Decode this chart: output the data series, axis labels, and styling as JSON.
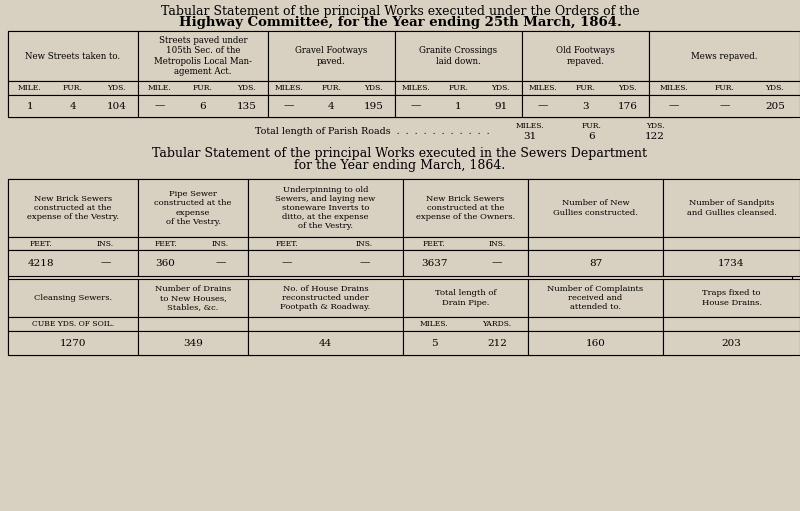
{
  "bg_color": "#d8d0c0",
  "title1_line1": "Tabular Statement of the principal Works executed under the Orders of the",
  "title1_line2": "Highway Committee, for the Year ending 25th March, 1864.",
  "title2_line1": "Tabular Statement of the principal Works executed in the Sewers Department",
  "title2_line2": "for the Year ending March, 1864.",
  "table1_headers": [
    "New Streets taken to.",
    "Streets paved under\n105th Sec. of the\nMetropolis Local Man-\nagement Act.",
    "Gravel Footways\npaved.",
    "Granite Crossings\nlaid down.",
    "Old Footways\nrepaved.",
    "Mews repaved."
  ],
  "table1_subheaders": [
    [
      "MILE.",
      "FUR.",
      "YDS."
    ],
    [
      "MILE.",
      "FUR.",
      "YDS."
    ],
    [
      "MILES.",
      "FUR.",
      "YDS."
    ],
    [
      "MILES.",
      "FUR.",
      "YDS."
    ],
    [
      "MILES.",
      "FUR.",
      "YDS."
    ],
    [
      "MILES.",
      "FUR.",
      "YDS."
    ]
  ],
  "table1_data": [
    [
      "1",
      "4",
      "104"
    ],
    [
      "—",
      "6",
      "135"
    ],
    [
      "—",
      "4",
      "195"
    ],
    [
      "—",
      "1",
      "91"
    ],
    [
      "—",
      "3",
      "176"
    ],
    [
      "—",
      "—",
      "205"
    ]
  ],
  "total_label": "Total length of Parish Roads  .  .  .  .  .  .  .  .  .  .  .",
  "table2_headers_row1": [
    "New Brick Sewers\nconstructed at the\nexpense of the Vestry.",
    "Pipe Sewer\nconstructed at the\nexpense\nof the Vestry.",
    "Underpinning to old\nSewers, and laying new\nstoneware Inverts to\nditto, at the expense\nof the Vestry.",
    "New Brick Sewers\nconstructed at the\nexpense of the Owners.",
    "Number of New\nGullies constructed.",
    "Number of Sandpits\nand Gullies cleansed."
  ],
  "table2_subheaders_row1": [
    [
      "FEET.",
      "INS."
    ],
    [
      "FEET.",
      "INS."
    ],
    [
      "FEET.",
      "INS."
    ],
    [
      "FEET.",
      "INS."
    ],
    "",
    ""
  ],
  "table2_data_row1": [
    [
      "4218",
      "—"
    ],
    [
      "360",
      "—"
    ],
    [
      "—",
      "—"
    ],
    [
      "3637",
      "—"
    ],
    "87",
    "1734"
  ],
  "table2_headers_row2": [
    "Cleansing Sewers.",
    "Number of Drains\nto New Houses,\nStables, &c.",
    "No. of House Drains\nreconstructed under\nFootpath & Roadway.",
    "Total length of\nDrain Pipe.",
    "Number of Complaints\nreceived and\nattended to.",
    "Traps fixed to\nHouse Drains."
  ],
  "table2_subheaders_row2": [
    "CUBE YDS. OF SOIL.",
    "",
    "",
    [
      "MILES.",
      "YARDS."
    ],
    "",
    ""
  ],
  "table2_data_row2": [
    "1270",
    "349",
    "44",
    [
      "5",
      "212"
    ],
    "160",
    "203"
  ]
}
